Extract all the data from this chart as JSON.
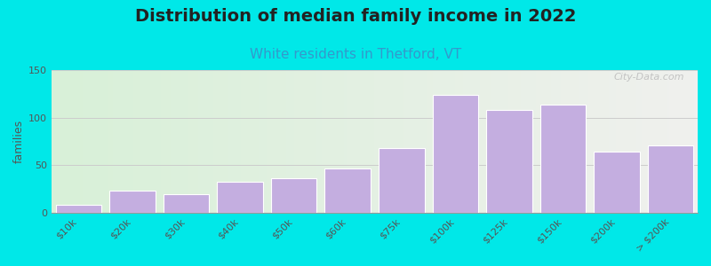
{
  "title": "Distribution of median family income in 2022",
  "subtitle": "White residents in Thetford, VT",
  "ylabel": "families",
  "categories": [
    "$10k",
    "$20k",
    "$30k",
    "$40k",
    "$50k",
    "$60k",
    "$75k",
    "$100k",
    "$125k",
    "$150k",
    "$200k",
    "> $200k"
  ],
  "values": [
    8,
    23,
    19,
    32,
    36,
    46,
    68,
    124,
    108,
    114,
    64,
    71
  ],
  "bar_color": "#c4aee0",
  "bar_edgecolor": "#ffffff",
  "background_color": "#00e8e8",
  "ylim": [
    0,
    150
  ],
  "yticks": [
    0,
    50,
    100,
    150
  ],
  "title_fontsize": 14,
  "subtitle_fontsize": 11,
  "subtitle_color": "#3399cc",
  "ylabel_fontsize": 9,
  "tick_fontsize": 8,
  "watermark": "City-Data.com",
  "grad_left": "#d8f0d8",
  "grad_right": "#f0f0ee"
}
